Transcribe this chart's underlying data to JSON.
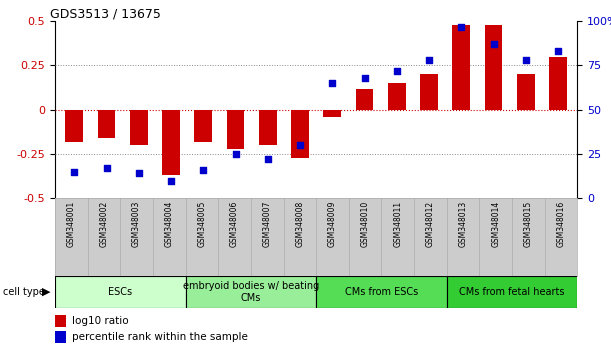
{
  "title": "GDS3513 / 13675",
  "samples": [
    "GSM348001",
    "GSM348002",
    "GSM348003",
    "GSM348004",
    "GSM348005",
    "GSM348006",
    "GSM348007",
    "GSM348008",
    "GSM348009",
    "GSM348010",
    "GSM348011",
    "GSM348012",
    "GSM348013",
    "GSM348014",
    "GSM348015",
    "GSM348016"
  ],
  "log10_ratio": [
    -0.18,
    -0.16,
    -0.2,
    -0.37,
    -0.18,
    -0.22,
    -0.2,
    -0.27,
    -0.04,
    0.12,
    0.15,
    0.2,
    0.48,
    0.48,
    0.2,
    0.3
  ],
  "percentile_rank": [
    15,
    17,
    14,
    10,
    16,
    25,
    22,
    30,
    65,
    68,
    72,
    78,
    97,
    87,
    78,
    83
  ],
  "bar_color": "#cc0000",
  "dot_color": "#0000cc",
  "cell_type_groups": [
    {
      "label": "ESCs",
      "start": 0,
      "end": 3,
      "color": "#ccffcc"
    },
    {
      "label": "embryoid bodies w/ beating\nCMs",
      "start": 4,
      "end": 7,
      "color": "#99ee99"
    },
    {
      "label": "CMs from ESCs",
      "start": 8,
      "end": 11,
      "color": "#55dd55"
    },
    {
      "label": "CMs from fetal hearts",
      "start": 12,
      "end": 15,
      "color": "#33cc33"
    }
  ],
  "ylim_left": [
    -0.5,
    0.5
  ],
  "ylim_right": [
    0,
    100
  ],
  "yticks_left": [
    -0.5,
    -0.25,
    0,
    0.25,
    0.5
  ],
  "yticks_right": [
    0,
    25,
    50,
    75,
    100
  ],
  "zero_line_color": "#cc0000",
  "dotted_color": "#888888",
  "bg_color": "#ffffff",
  "chart_bg": "#ffffff",
  "label_bg": "#cccccc",
  "label_edge": "#aaaaaa"
}
